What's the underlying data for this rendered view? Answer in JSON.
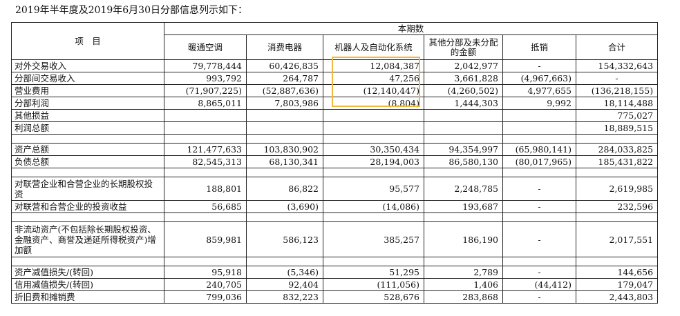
{
  "caption": "2019年半年度及2019年6月30日分部信息列示如下：",
  "header": {
    "item_col": "项　目",
    "group": "本期数",
    "segments": [
      "暖通空调",
      "消费电器",
      "机器人及自动化系统",
      "其他分部及未分配的金额",
      "抵销",
      "合计"
    ]
  },
  "rows": [
    {
      "label": "对外交易收入",
      "values": [
        "79,778,444",
        "60,426,835",
        "12,084,387",
        "2,042,977",
        "-",
        "154,332,643"
      ]
    },
    {
      "label": "分部间交易收入",
      "values": [
        "993,792",
        "264,787",
        "47,256",
        "3,661,828",
        "(4,967,663)",
        "-"
      ]
    },
    {
      "label": "营业费用",
      "values": [
        "(71,907,225)",
        "(52,887,636)",
        "(12,140,447)",
        "(4,260,502)",
        "4,977,655",
        "(136,218,155)"
      ]
    },
    {
      "label": "分部利润",
      "values": [
        "8,865,011",
        "7,803,986",
        "(8,804)",
        "1,444,303",
        "9,992",
        "18,114,488"
      ]
    },
    {
      "label": "其他损益",
      "values": [
        "",
        "",
        "",
        "",
        "",
        "775,027"
      ]
    },
    {
      "label": "利润总额",
      "values": [
        "",
        "",
        "",
        "",
        "",
        "18,889,515"
      ]
    },
    {
      "label": "",
      "values": [
        "",
        "",
        "",
        "",
        "",
        ""
      ],
      "spacer": true
    },
    {
      "label": "资产总额",
      "values": [
        "121,477,633",
        "103,830,902",
        "30,350,434",
        "94,354,997",
        "(65,980,141)",
        "284,033,825"
      ]
    },
    {
      "label": "负债总额",
      "values": [
        "82,545,313",
        "68,130,341",
        "28,194,003",
        "86,580,130",
        "(80,017,965)",
        "185,431,822"
      ]
    },
    {
      "label": "",
      "values": [
        "",
        "",
        "",
        "",
        "",
        ""
      ],
      "spacer": true
    },
    {
      "label": "对联营企业和合营企业的长期股权投资",
      "values": [
        "188,801",
        "86,822",
        "95,577",
        "2,248,785",
        "-",
        "2,619,985"
      ],
      "cls": "h2"
    },
    {
      "label": "对联营和合营企业的投资收益",
      "values": [
        "56,685",
        "(3,690)",
        "(14,086)",
        "193,687",
        "-",
        "232,596"
      ]
    },
    {
      "label": "",
      "values": [
        "",
        "",
        "",
        "",
        "",
        ""
      ],
      "spacer": true
    },
    {
      "label": "非流动资产(不包括除长期股权投资、金融资产、商誉及递延所得税资产)增加额",
      "values": [
        "859,981",
        "586,123",
        "385,257",
        "186,190",
        "-",
        "2,017,551"
      ],
      "cls": "h3"
    },
    {
      "label": "",
      "values": [
        "",
        "",
        "",
        "",
        "",
        ""
      ],
      "spacer": true
    },
    {
      "label": "资产减值损失/(转回)",
      "values": [
        "95,918",
        "(5,346)",
        "51,295",
        "2,789",
        "-",
        "144,656"
      ]
    },
    {
      "label": "信用减值损失/(转回)",
      "values": [
        "240,705",
        "92,404",
        "(111,056)",
        "1,406",
        "(44,412)",
        "179,047"
      ]
    },
    {
      "label": "折旧费和摊销费",
      "values": [
        "799,036",
        "832,223",
        "528,676",
        "283,868",
        "-",
        "2,443,803"
      ]
    }
  ]
}
